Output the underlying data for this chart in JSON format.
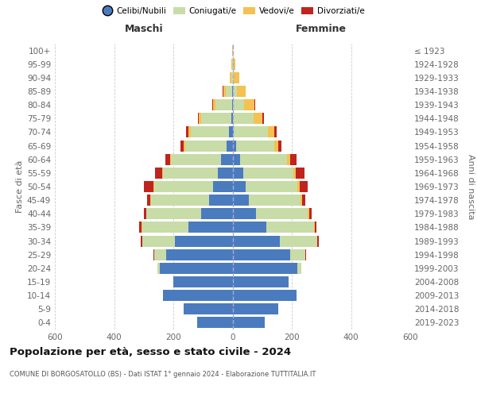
{
  "age_groups": [
    "0-4",
    "5-9",
    "10-14",
    "15-19",
    "20-24",
    "25-29",
    "30-34",
    "35-39",
    "40-44",
    "45-49",
    "50-54",
    "55-59",
    "60-64",
    "65-69",
    "70-74",
    "75-79",
    "80-84",
    "85-89",
    "90-94",
    "95-99",
    "100+"
  ],
  "birth_years": [
    "2019-2023",
    "2014-2018",
    "2009-2013",
    "2004-2008",
    "1999-2003",
    "1994-1998",
    "1989-1993",
    "1984-1988",
    "1979-1983",
    "1974-1978",
    "1969-1973",
    "1964-1968",
    "1959-1963",
    "1954-1958",
    "1949-1953",
    "1944-1948",
    "1939-1943",
    "1934-1938",
    "1929-1933",
    "1924-1928",
    "≤ 1923"
  ],
  "male_celibi": [
    120,
    165,
    235,
    200,
    245,
    225,
    195,
    150,
    105,
    80,
    65,
    50,
    38,
    20,
    12,
    5,
    2,
    1,
    0,
    0,
    0
  ],
  "male_coniugati": [
    0,
    0,
    0,
    0,
    8,
    40,
    110,
    155,
    185,
    195,
    200,
    185,
    170,
    140,
    130,
    100,
    55,
    22,
    5,
    2,
    0
  ],
  "male_vedovi": [
    0,
    0,
    0,
    0,
    0,
    0,
    0,
    2,
    2,
    2,
    3,
    3,
    4,
    5,
    8,
    8,
    10,
    8,
    5,
    3,
    1
  ],
  "male_divorziati": [
    0,
    0,
    0,
    0,
    0,
    2,
    5,
    8,
    8,
    12,
    30,
    25,
    15,
    10,
    8,
    5,
    2,
    2,
    0,
    0,
    0
  ],
  "fem_nubili": [
    110,
    155,
    215,
    190,
    220,
    195,
    160,
    115,
    78,
    55,
    45,
    35,
    25,
    12,
    5,
    2,
    1,
    0,
    0,
    0,
    0
  ],
  "fem_coniugate": [
    0,
    0,
    0,
    0,
    12,
    50,
    125,
    160,
    175,
    175,
    175,
    170,
    160,
    130,
    115,
    70,
    38,
    15,
    5,
    1,
    0
  ],
  "fem_vedove": [
    0,
    0,
    0,
    0,
    0,
    0,
    2,
    2,
    5,
    5,
    8,
    8,
    10,
    12,
    20,
    30,
    35,
    28,
    18,
    8,
    2
  ],
  "fem_divorziate": [
    0,
    0,
    0,
    0,
    0,
    2,
    5,
    5,
    8,
    10,
    25,
    30,
    20,
    10,
    8,
    5,
    2,
    2,
    0,
    0,
    0
  ],
  "color_celibi": "#4b7bbf",
  "color_coniugati": "#c8dca8",
  "color_vedovi": "#f5c150",
  "color_divorziati": "#c0241e",
  "legend_labels": [
    "Celibi/Nubili",
    "Coniugati/e",
    "Vedovi/e",
    "Divorziati/e"
  ],
  "title": "Popolazione per età, sesso e stato civile - 2024",
  "subtitle": "COMUNE DI BORGOSATOLLO (BS) - Dati ISTAT 1° gennaio 2024 - Elaborazione TUTTITALIA.IT",
  "ylabel_left": "Fasce di età",
  "ylabel_right": "Anni di nascita",
  "label_maschi": "Maschi",
  "label_femmine": "Femmine",
  "xlim": 600,
  "xticks": [
    -600,
    -400,
    -200,
    0,
    200,
    400,
    600
  ],
  "bg_color": "#ffffff",
  "grid_color": "#cccccc",
  "text_color": "#666666",
  "header_color": "#333333",
  "center_line_color": "#aaaacc"
}
